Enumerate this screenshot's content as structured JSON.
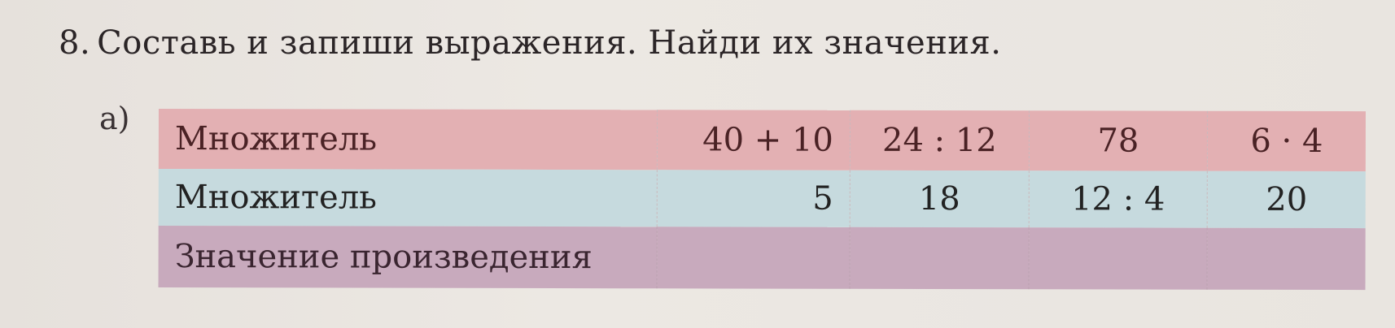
{
  "task": {
    "number": "8.",
    "text": "Составь и запиши выражения. Найди их значения."
  },
  "part_label": "а)",
  "table": {
    "rows": [
      {
        "label": "Множитель",
        "cells": [
          "40 + 10",
          "24 : 12",
          "78",
          "6 · 4"
        ]
      },
      {
        "label": "Множитель",
        "cells": [
          "5",
          "18",
          "12 : 4",
          "20"
        ]
      },
      {
        "label": "Значение произведения",
        "cells": [
          "",
          "",
          "",
          ""
        ]
      }
    ]
  },
  "colors": {
    "row1": "#e3b0b3",
    "row2": "#c6dade",
    "row3": "#c8aabd"
  }
}
